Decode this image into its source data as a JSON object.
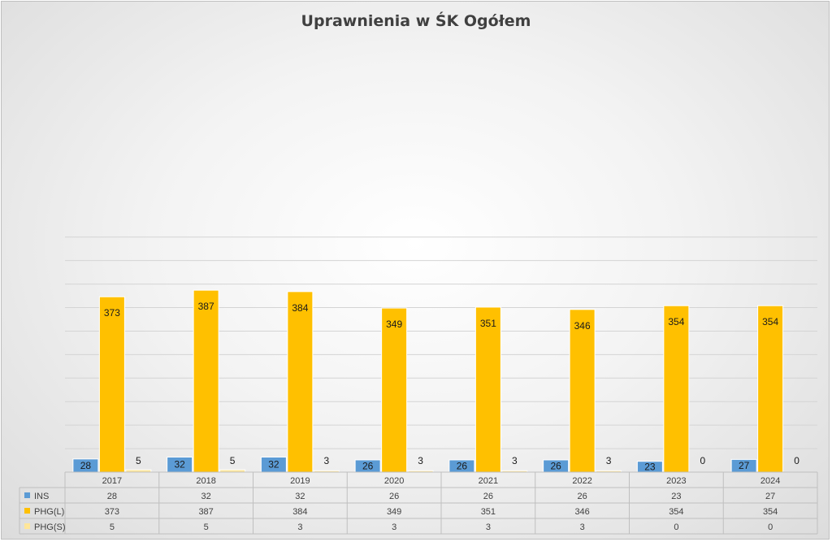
{
  "chart_data": {
    "type": "bar",
    "title": "Uprawnienia w ŚK Ogółem",
    "categories": [
      "2017",
      "2018",
      "2019",
      "2020",
      "2021",
      "2022",
      "2023",
      "2024"
    ],
    "series": [
      {
        "name": "INS",
        "values": [
          28,
          32,
          32,
          26,
          26,
          26,
          23,
          27
        ],
        "color": "#5b9bd5"
      },
      {
        "name": "PHG(L)",
        "values": [
          373,
          387,
          384,
          349,
          351,
          346,
          354,
          354
        ],
        "color": "#ffc000"
      },
      {
        "name": "PHG(S)",
        "values": [
          5,
          5,
          3,
          3,
          3,
          3,
          0,
          0
        ],
        "color": "#ffe699"
      }
    ],
    "ylim": [
      0,
      500
    ],
    "gridlines": true,
    "data_table": true,
    "legend": "data-table"
  }
}
